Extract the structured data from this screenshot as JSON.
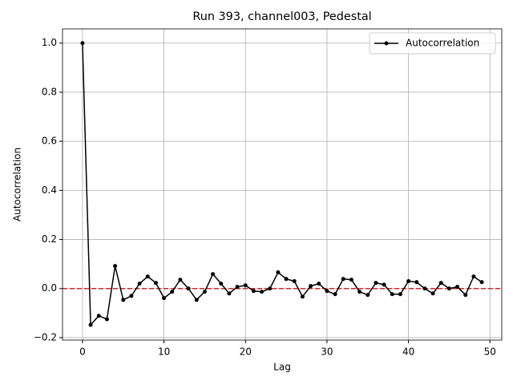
{
  "chart_data": {
    "type": "line",
    "title": "Run 393, channel003, Pedestal",
    "x_label": "Lag",
    "y_label": "Autocorrelation",
    "x": [
      0,
      1,
      2,
      3,
      4,
      5,
      6,
      7,
      8,
      9,
      10,
      11,
      12,
      13,
      14,
      15,
      16,
      17,
      18,
      19,
      20,
      21,
      22,
      23,
      24,
      25,
      26,
      27,
      28,
      29,
      30,
      31,
      32,
      33,
      34,
      35,
      36,
      37,
      38,
      39,
      40,
      41,
      42,
      43,
      44,
      45,
      46,
      47,
      48,
      49
    ],
    "series": [
      {
        "name": "Autocorrelation",
        "color": "#000000",
        "values": [
          1.0,
          -0.148,
          -0.111,
          -0.125,
          0.092,
          -0.046,
          -0.03,
          0.02,
          0.049,
          0.023,
          -0.039,
          -0.013,
          0.036,
          0.0,
          -0.046,
          -0.013,
          0.059,
          0.02,
          -0.02,
          0.007,
          0.013,
          -0.01,
          -0.013,
          0.0,
          0.066,
          0.039,
          0.03,
          -0.033,
          0.01,
          0.02,
          -0.01,
          -0.023,
          0.039,
          0.036,
          -0.013,
          -0.026,
          0.023,
          0.016,
          -0.023,
          -0.023,
          0.03,
          0.026,
          0.0,
          -0.02,
          0.023,
          0.0,
          0.007,
          -0.026,
          0.049,
          0.026
        ]
      }
    ],
    "hline": {
      "value": 0,
      "color": "#d62728"
    },
    "xlim": [
      -2.45,
      51.45
    ],
    "ylim": [
      -0.21,
      1.058
    ],
    "xticks": [
      0,
      10,
      20,
      30,
      40,
      50
    ],
    "yticks": [
      {
        "value": -0.2,
        "label": "−0.2"
      },
      {
        "value": 0,
        "label": "0.0"
      },
      {
        "value": 0.2,
        "label": "0.2"
      },
      {
        "value": 0.4,
        "label": "0.4"
      },
      {
        "value": 0.6,
        "label": "0.6"
      },
      {
        "value": 0.8,
        "label": "0.8"
      },
      {
        "value": 1.0,
        "label": "1.0"
      }
    ],
    "grid": true,
    "legend": "upper right"
  }
}
